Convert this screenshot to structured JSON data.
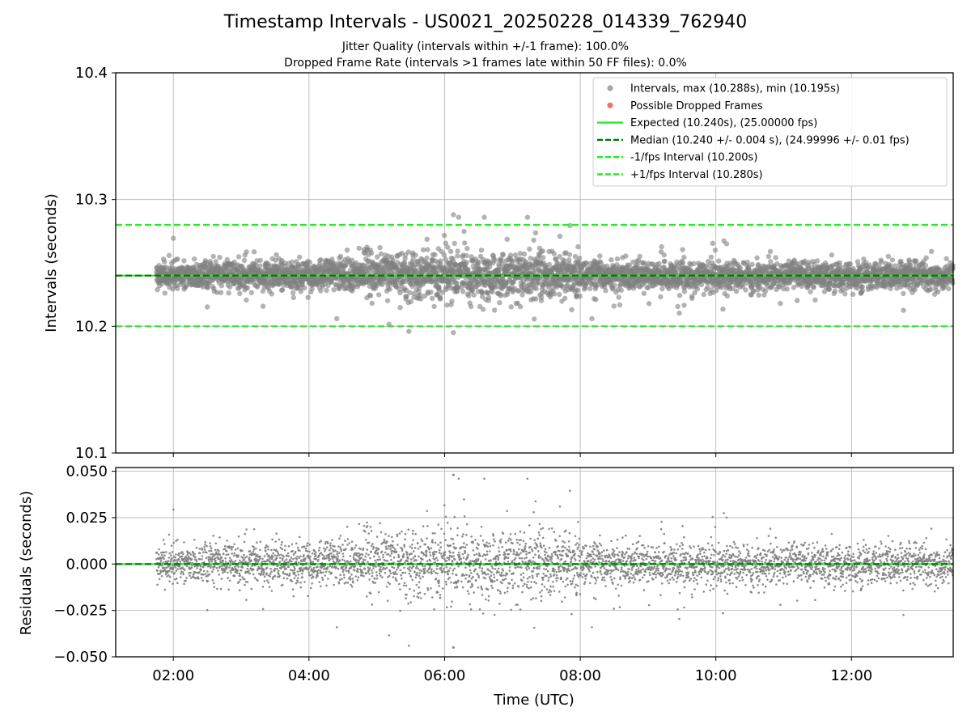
{
  "title": "Timestamp Intervals - US0021_20250228_014339_762940",
  "subtitle_lines": [
    "Jitter Quality (intervals within +/-1 frame): 100.0%",
    "Dropped Frame Rate (intervals >1 frames late within 50 FF files): 0.0%"
  ],
  "colors": {
    "points": "#808080",
    "dropped": "#f05050",
    "expected": "#22ee22",
    "median": "#007700",
    "bounds": "#22ee22"
  },
  "chart_data": [
    {
      "type": "scatter",
      "ylabel": "Intervals (seconds)",
      "xlabel": "",
      "xlim_hours": [
        1.15,
        13.5
      ],
      "ylim": [
        10.1,
        10.4
      ],
      "yticks": [
        "10.1",
        "10.2",
        "10.3",
        "10.4"
      ],
      "grid": true,
      "legend_placement": "top-right",
      "data_range_hours": [
        1.75,
        13.5
      ],
      "max_interval": 10.288,
      "min_interval": 10.195,
      "reference_lines": {
        "expected": 10.24,
        "median": 10.24,
        "lower": 10.2,
        "upper": 10.28
      },
      "legend": [
        {
          "label": "Intervals, max (10.288s), min (10.195s)",
          "kind": "dot",
          "color": "#a6a6a6"
        },
        {
          "label": "Possible Dropped Frames",
          "kind": "dot",
          "color": "#f07070"
        },
        {
          "label": "Expected (10.240s), (25.00000 fps)",
          "kind": "line",
          "color": "#22ee22"
        },
        {
          "label": "Median (10.240 +/- 0.004 s), (24.99996 +/- 0.01 fps)",
          "kind": "dashed",
          "color": "#007700"
        },
        {
          "label": "-1/fps Interval (10.200s)",
          "kind": "dashed",
          "color": "#22ee22"
        },
        {
          "label": "+1/fps Interval (10.280s)",
          "kind": "dashed",
          "color": "#22ee22"
        }
      ]
    },
    {
      "type": "scatter",
      "ylabel": "Residuals (seconds)",
      "xlabel": "Time (UTC)",
      "xlim_hours": [
        1.15,
        13.5
      ],
      "ylim": [
        -0.05,
        0.052
      ],
      "yticks": [
        "−0.050",
        "−0.025",
        "0.000",
        "0.025",
        "0.050"
      ],
      "ytick_values": [
        -0.05,
        -0.025,
        0,
        0.025,
        0.05
      ],
      "xticks": [
        "02:00",
        "04:00",
        "06:00",
        "08:00",
        "10:00",
        "12:00"
      ],
      "xtick_values_hours": [
        2,
        4,
        6,
        8,
        10,
        12
      ],
      "grid": true,
      "max_residual": 0.048,
      "min_residual": -0.045,
      "zero_line": 0
    }
  ]
}
